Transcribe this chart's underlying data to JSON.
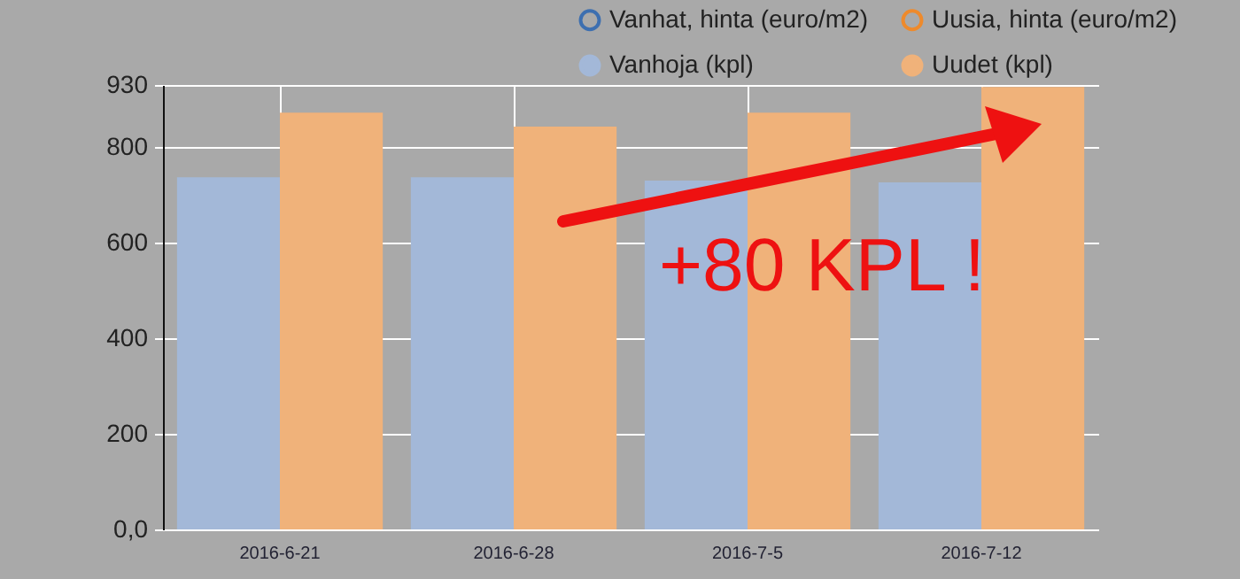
{
  "chart_data": {
    "type": "bar",
    "categories": [
      "2016-6-21",
      "2016-6-28",
      "2016-7-5",
      "2016-7-12"
    ],
    "series": [
      {
        "name": "Vanhat, hinta (euro/m2)",
        "type": "line",
        "color": "#3d6fb0",
        "values": [
          null,
          null,
          null,
          null
        ]
      },
      {
        "name": "Vanhoja (kpl)",
        "color": "#a3b8d8",
        "values": [
          737,
          737,
          730,
          726
        ]
      },
      {
        "name": "Uusia, hinta (euro/m2)",
        "type": "line",
        "color": "#ee8a2c",
        "values": [
          null,
          null,
          null,
          null
        ]
      },
      {
        "name": "Uudet (kpl)",
        "color": "#f0b27a",
        "values": [
          872,
          843,
          872,
          926
        ]
      }
    ],
    "ylim": [
      0,
      930
    ],
    "yticks": [
      {
        "value": 0,
        "label": "0,0"
      },
      200,
      400,
      600,
      800,
      930
    ],
    "grid": true,
    "legend": "top right",
    "marker": "circle",
    "annotations": [
      "+80 KPL !"
    ]
  }
}
